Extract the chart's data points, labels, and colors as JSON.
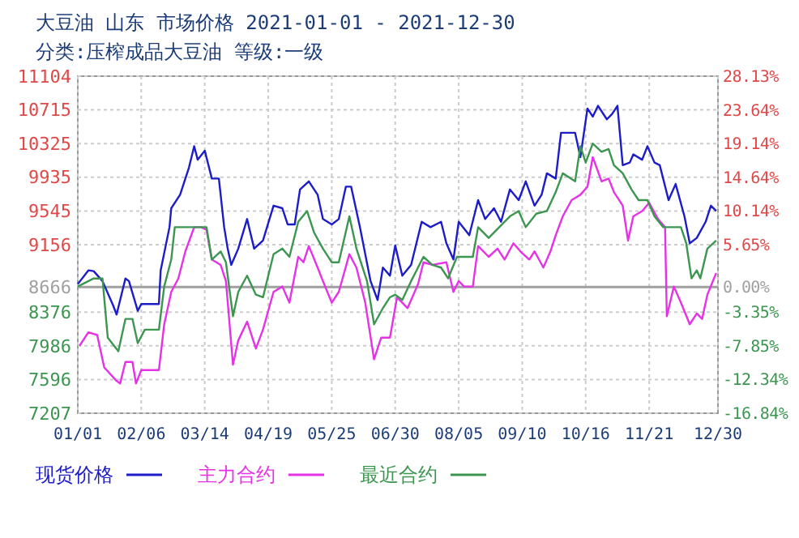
{
  "chart_data": {
    "type": "line",
    "title": "大豆油 山东 市场价格 2021-01-01 - 2021-12-30",
    "subtitle": "分类:压榨成品大豆油 等级:一级",
    "xlim": [
      "2021-01-01",
      "2021-12-30"
    ],
    "xticks": [
      {
        "value": "2021-01-01",
        "label": "01/01"
      },
      {
        "value": "2021-02-06",
        "label": "02/06"
      },
      {
        "value": "2021-03-14",
        "label": "03/14"
      },
      {
        "value": "2021-04-19",
        "label": "04/19"
      },
      {
        "value": "2021-05-25",
        "label": "05/25"
      },
      {
        "value": "2021-06-30",
        "label": "06/30"
      },
      {
        "value": "2021-08-05",
        "label": "08/05"
      },
      {
        "value": "2021-09-10",
        "label": "09/10"
      },
      {
        "value": "2021-10-16",
        "label": "10/16"
      },
      {
        "value": "2021-11-21",
        "label": "11/21"
      },
      {
        "value": "2021-12-30",
        "label": "12/30"
      }
    ],
    "ylim": [
      7207,
      11104
    ],
    "yticks": [
      7207,
      7596,
      7986,
      8376,
      8666,
      9156,
      9545,
      9935,
      10325,
      10715,
      11104
    ],
    "y2lim": [
      -16.84,
      28.13
    ],
    "y2ticks": [
      {
        "value": -16.84,
        "label": "-16.84%"
      },
      {
        "value": -12.34,
        "label": "-12.34%"
      },
      {
        "value": -7.85,
        "label": "-7.85%"
      },
      {
        "value": -3.35,
        "label": "-3.35%"
      },
      {
        "value": 0,
        "label": "0.00%"
      },
      {
        "value": 5.65,
        "label": "5.65%"
      },
      {
        "value": 10.14,
        "label": "10.14%"
      },
      {
        "value": 14.64,
        "label": "14.64%"
      },
      {
        "value": 19.14,
        "label": "19.14%"
      },
      {
        "value": 23.64,
        "label": "23.64%"
      },
      {
        "value": 28.13,
        "label": "28.13%"
      }
    ],
    "ref_lines": [
      {
        "axis": "y",
        "value": 8666,
        "color": "#a0a0a0"
      }
    ],
    "grid": true,
    "legend": "bottom",
    "marker": "none",
    "line_style": "solid",
    "series": [
      {
        "name": "现货价格",
        "color": "#1c1cc8",
        "x": [
          "2021-01-01",
          "2021-01-07",
          "2021-01-10",
          "2021-01-15",
          "2021-01-21",
          "2021-01-23",
          "2021-01-28",
          "2021-01-30",
          "2021-02-04",
          "2021-02-06",
          "2021-02-16",
          "2021-02-17",
          "2021-02-22",
          "2021-02-23",
          "2021-02-28",
          "2021-03-05",
          "2021-03-08",
          "2021-03-10",
          "2021-03-14",
          "2021-03-18",
          "2021-03-22",
          "2021-03-25",
          "2021-03-27",
          "2021-03-29",
          "2021-04-02",
          "2021-04-07",
          "2021-04-11",
          "2021-04-16",
          "2021-04-22",
          "2021-04-27",
          "2021-04-30",
          "2021-05-04",
          "2021-05-07",
          "2021-05-12",
          "2021-05-17",
          "2021-05-20",
          "2021-05-25",
          "2021-05-29",
          "2021-06-02",
          "2021-06-05",
          "2021-06-10",
          "2021-06-16",
          "2021-06-20",
          "2021-06-23",
          "2021-06-27",
          "2021-06-30",
          "2021-07-04",
          "2021-07-09",
          "2021-07-15",
          "2021-07-20",
          "2021-07-26",
          "2021-07-29",
          "2021-08-02",
          "2021-08-05",
          "2021-08-11",
          "2021-08-16",
          "2021-08-20",
          "2021-08-25",
          "2021-08-29",
          "2021-09-03",
          "2021-09-08",
          "2021-09-12",
          "2021-09-17",
          "2021-09-21",
          "2021-09-24",
          "2021-09-29",
          "2021-10-02",
          "2021-10-10",
          "2021-10-13",
          "2021-10-17",
          "2021-10-20",
          "2021-10-23",
          "2021-10-28",
          "2021-10-31",
          "2021-11-03",
          "2021-11-06",
          "2021-11-10",
          "2021-11-12",
          "2021-11-17",
          "2021-11-20",
          "2021-11-24",
          "2021-11-27",
          "2021-12-02",
          "2021-12-06",
          "2021-12-11",
          "2021-12-14",
          "2021-12-18",
          "2021-12-23",
          "2021-12-26",
          "2021-12-29"
        ],
        "values": [
          8700,
          8859,
          8850,
          8735,
          8455,
          8348,
          8765,
          8735,
          8391,
          8470,
          8470,
          8859,
          9358,
          9577,
          9733,
          10045,
          10294,
          10138,
          10243,
          9920,
          9920,
          9358,
          9110,
          8922,
          9110,
          9452,
          9110,
          9203,
          9607,
          9577,
          9390,
          9390,
          9794,
          9888,
          9733,
          9452,
          9390,
          9452,
          9826,
          9826,
          9358,
          8735,
          8516,
          8891,
          8797,
          9147,
          8797,
          8922,
          9420,
          9358,
          9420,
          9172,
          8985,
          9420,
          9265,
          9671,
          9452,
          9577,
          9420,
          9794,
          9671,
          9888,
          9607,
          9733,
          9981,
          9920,
          10449,
          10449,
          10168,
          10730,
          10636,
          10761,
          10605,
          10667,
          10761,
          10075,
          10105,
          10200,
          10138,
          10294,
          10105,
          10075,
          9671,
          9857,
          9483,
          9172,
          9234,
          9420,
          9607,
          9545
        ]
      },
      {
        "name": "主力合约",
        "color": "#e632e6",
        "x": [
          "2021-01-02",
          "2021-01-07",
          "2021-01-12",
          "2021-01-16",
          "2021-01-23",
          "2021-01-25",
          "2021-01-28",
          "2021-02-01",
          "2021-02-03",
          "2021-02-06",
          "2021-02-16",
          "2021-02-19",
          "2021-02-23",
          "2021-02-27",
          "2021-03-03",
          "2021-03-08",
          "2021-03-12",
          "2021-03-15",
          "2021-03-18",
          "2021-03-23",
          "2021-03-26",
          "2021-03-30",
          "2021-04-02",
          "2021-04-07",
          "2021-04-12",
          "2021-04-16",
          "2021-04-22",
          "2021-04-27",
          "2021-05-01",
          "2021-05-06",
          "2021-05-09",
          "2021-05-12",
          "2021-05-17",
          "2021-05-20",
          "2021-05-25",
          "2021-05-29",
          "2021-06-04",
          "2021-06-08",
          "2021-06-13",
          "2021-06-18",
          "2021-06-22",
          "2021-06-27",
          "2021-07-01",
          "2021-07-07",
          "2021-07-13",
          "2021-07-16",
          "2021-07-21",
          "2021-07-29",
          "2021-08-02",
          "2021-08-05",
          "2021-08-08",
          "2021-08-13",
          "2021-08-16",
          "2021-08-22",
          "2021-08-27",
          "2021-08-31",
          "2021-09-05",
          "2021-09-09",
          "2021-09-14",
          "2021-09-17",
          "2021-09-22",
          "2021-09-26",
          "2021-09-29",
          "2021-10-03",
          "2021-10-08",
          "2021-10-13",
          "2021-10-17",
          "2021-10-20",
          "2021-10-25",
          "2021-10-29",
          "2021-11-01",
          "2021-11-06",
          "2021-11-09",
          "2021-11-12",
          "2021-11-17",
          "2021-11-21",
          "2021-11-26",
          "2021-11-30",
          "2021-12-01",
          "2021-12-05",
          "2021-12-09",
          "2021-12-14",
          "2021-12-18",
          "2021-12-21",
          "2021-12-24",
          "2021-12-29"
        ],
        "values": [
          7987,
          8142,
          8111,
          7736,
          7581,
          7550,
          7800,
          7800,
          7550,
          7706,
          7706,
          8235,
          8610,
          8765,
          9078,
          9358,
          9358,
          9327,
          8984,
          8922,
          8735,
          7768,
          8049,
          8266,
          7955,
          8173,
          8610,
          8672,
          8485,
          9015,
          8952,
          9140,
          8891,
          8735,
          8485,
          8610,
          9046,
          8891,
          8485,
          7830,
          8080,
          8080,
          8547,
          8422,
          8703,
          8952,
          8922,
          8952,
          8610,
          8735,
          8672,
          8672,
          9140,
          9015,
          9110,
          8984,
          9172,
          9078,
          8984,
          9078,
          8891,
          9078,
          9265,
          9483,
          9671,
          9733,
          9826,
          10168,
          9888,
          9920,
          9764,
          9607,
          9203,
          9483,
          9545,
          9639,
          9452,
          9358,
          8329,
          8672,
          8485,
          8235,
          8360,
          8297,
          8578,
          8828
        ]
      },
      {
        "name": "最近合约",
        "color": "#3c9650",
        "x": [
          "2021-01-01",
          "2021-01-10",
          "2021-01-15",
          "2021-01-18",
          "2021-01-24",
          "2021-01-28",
          "2021-02-01",
          "2021-02-04",
          "2021-02-08",
          "2021-02-16",
          "2021-02-19",
          "2021-02-23",
          "2021-02-25",
          "2021-03-08",
          "2021-03-15",
          "2021-03-18",
          "2021-03-23",
          "2021-03-26",
          "2021-03-30",
          "2021-04-02",
          "2021-04-07",
          "2021-04-12",
          "2021-04-16",
          "2021-04-22",
          "2021-04-27",
          "2021-05-01",
          "2021-05-06",
          "2021-05-11",
          "2021-05-15",
          "2021-05-20",
          "2021-05-25",
          "2021-05-29",
          "2021-06-04",
          "2021-06-08",
          "2021-06-14",
          "2021-06-18",
          "2021-06-23",
          "2021-06-27",
          "2021-06-30",
          "2021-07-04",
          "2021-07-09",
          "2021-07-16",
          "2021-07-21",
          "2021-07-26",
          "2021-07-30",
          "2021-08-04",
          "2021-08-13",
          "2021-08-16",
          "2021-08-22",
          "2021-08-28",
          "2021-09-03",
          "2021-09-08",
          "2021-09-12",
          "2021-09-18",
          "2021-09-24",
          "2021-09-29",
          "2021-10-03",
          "2021-10-10",
          "2021-10-13",
          "2021-10-16",
          "2021-10-20",
          "2021-10-25",
          "2021-10-29",
          "2021-11-01",
          "2021-11-06",
          "2021-11-11",
          "2021-11-15",
          "2021-11-20",
          "2021-11-24",
          "2021-11-29",
          "2021-12-09",
          "2021-12-12",
          "2021-12-15",
          "2021-12-18",
          "2021-12-20",
          "2021-12-24",
          "2021-12-29"
        ],
        "values": [
          8672,
          8765,
          8765,
          8080,
          7923,
          8297,
          8297,
          8017,
          8173,
          8173,
          8672,
          8984,
          9358,
          9358,
          9358,
          8984,
          9078,
          8952,
          8329,
          8610,
          8797,
          8578,
          8547,
          9046,
          9110,
          9015,
          9420,
          9545,
          9296,
          9110,
          8952,
          8952,
          9483,
          9110,
          8735,
          8235,
          8422,
          8547,
          8578,
          8516,
          8735,
          9015,
          8922,
          8891,
          8766,
          9015,
          9015,
          9358,
          9234,
          9358,
          9483,
          9545,
          9358,
          9514,
          9545,
          9764,
          9981,
          9888,
          10294,
          10105,
          10325,
          10230,
          10262,
          10075,
          9981,
          9794,
          9671,
          9671,
          9483,
          9358,
          9358,
          9172,
          8766,
          8859,
          8766,
          9110,
          9203
        ]
      }
    ]
  }
}
